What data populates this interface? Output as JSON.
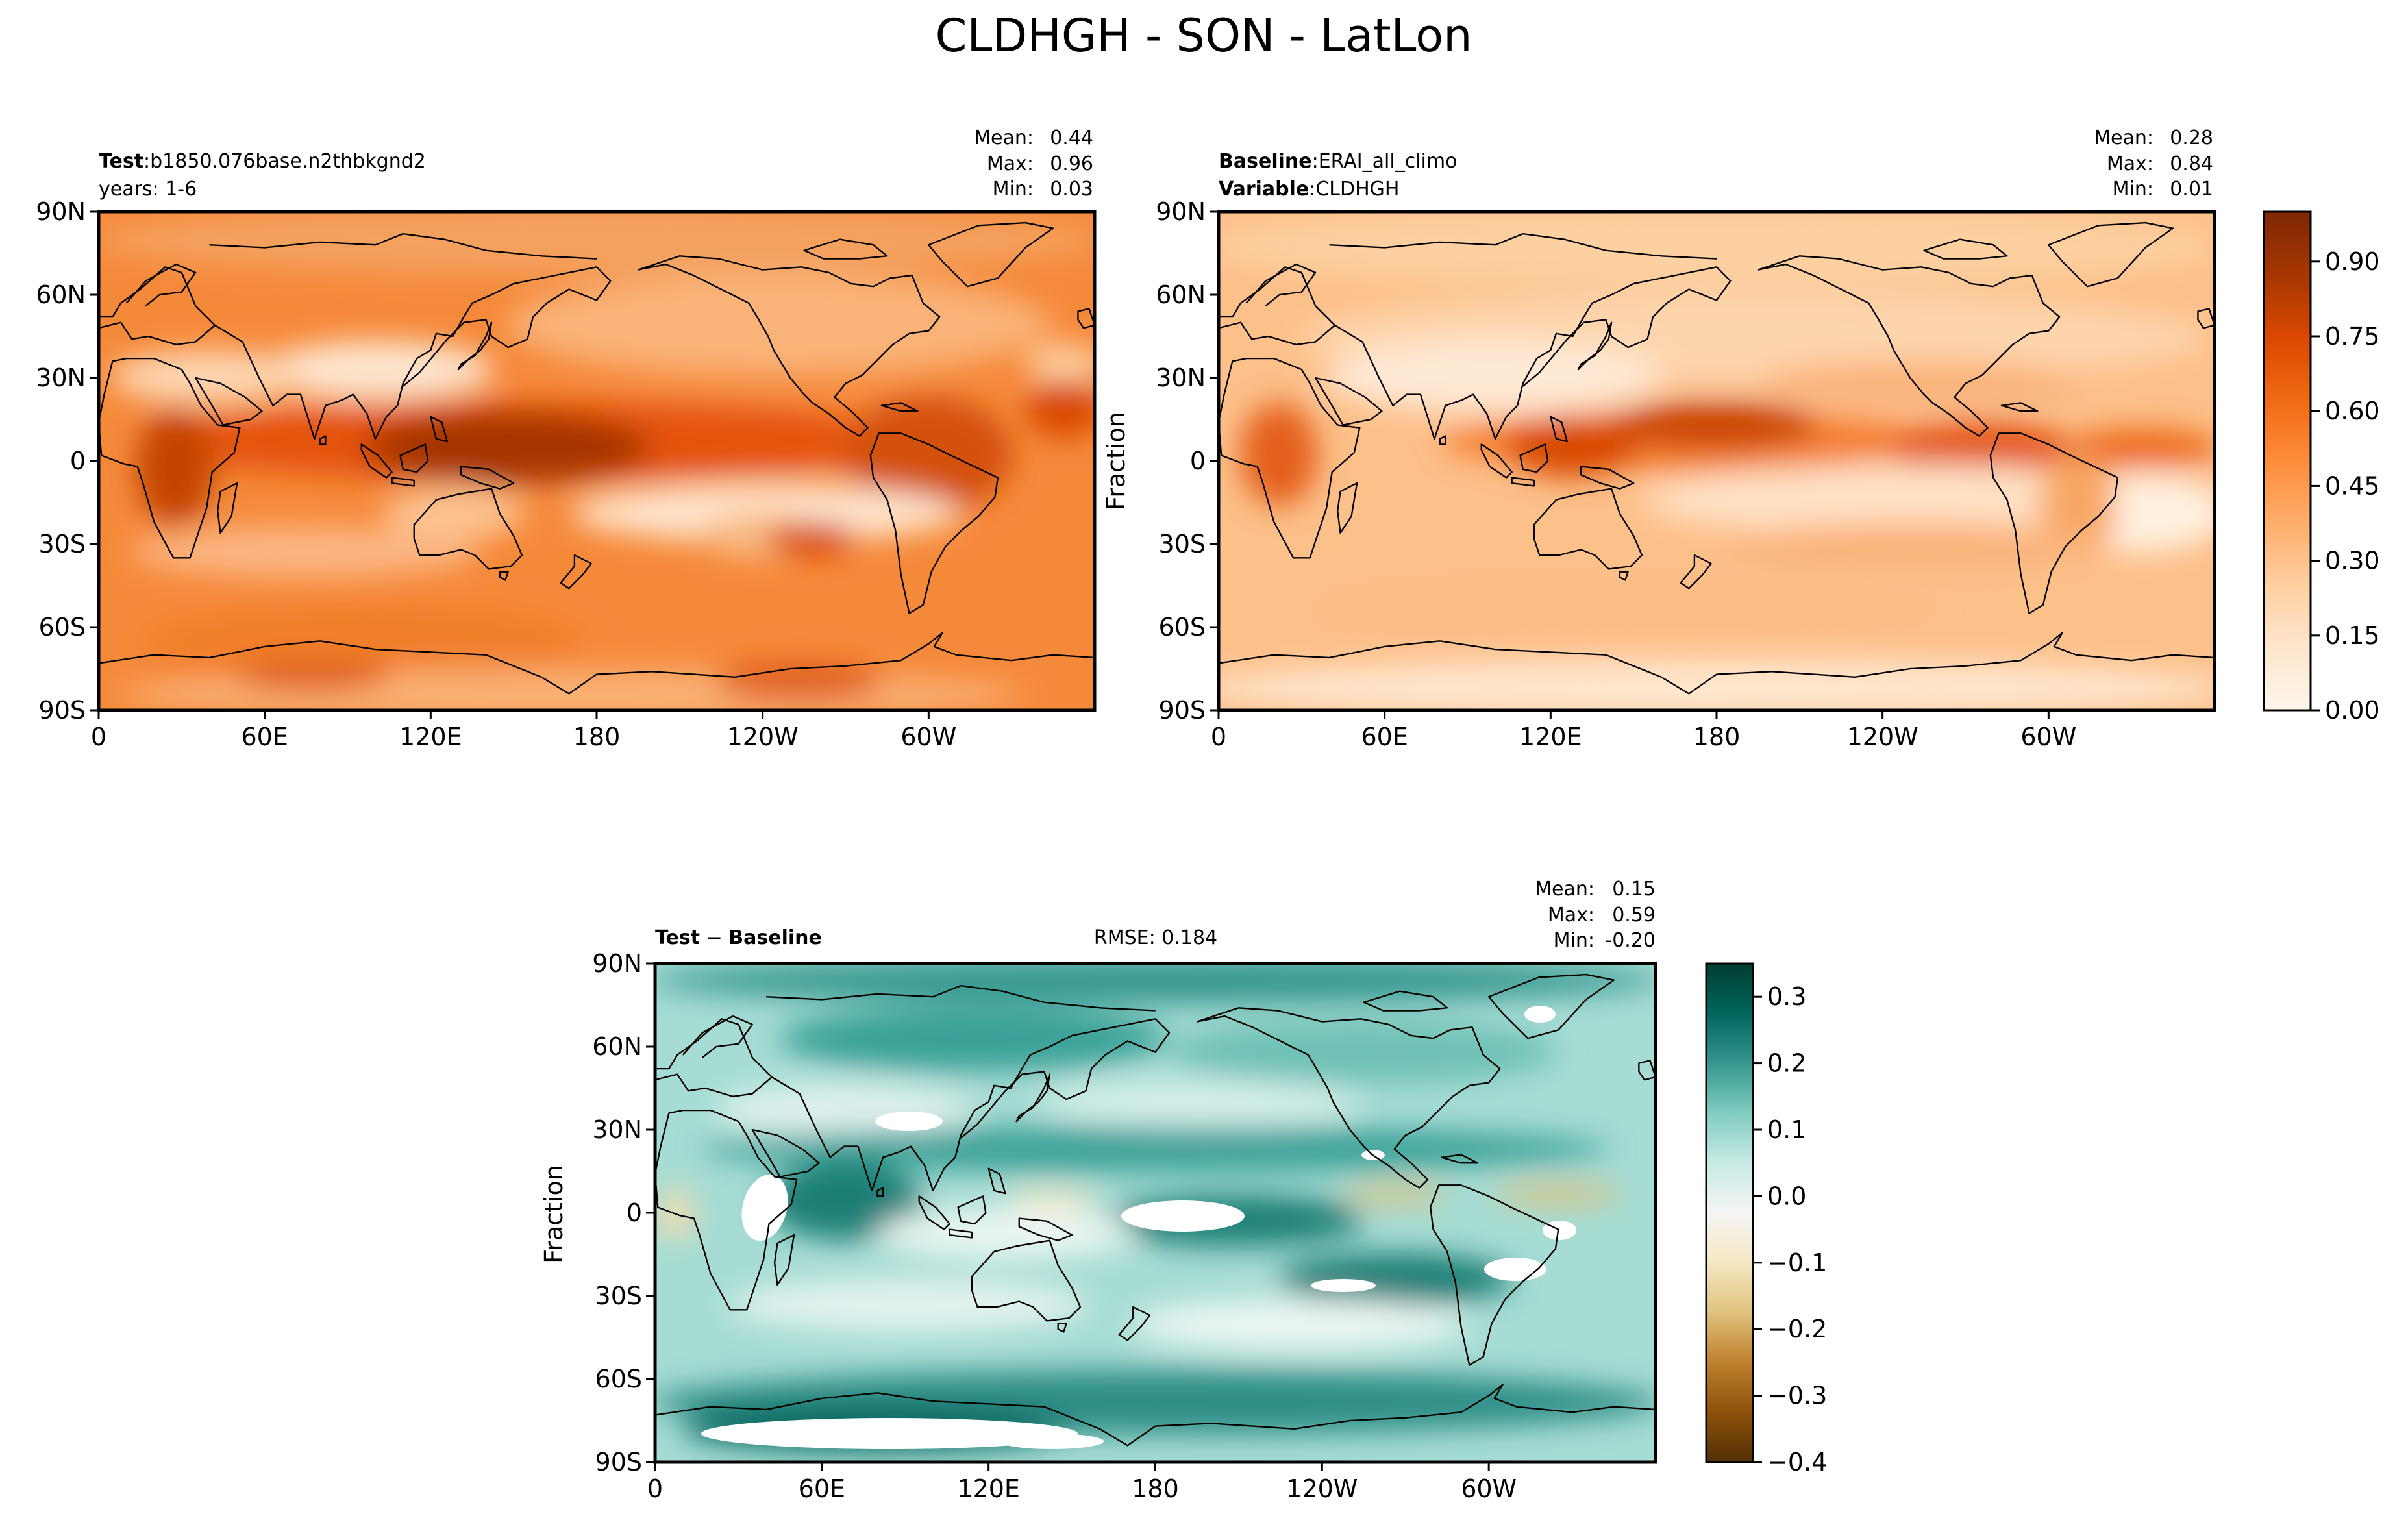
{
  "figure_title": "CLDHGH - SON - LatLon",
  "colors": {
    "orange_stops": [
      "#fff5eb",
      "#fee6ce",
      "#fdd0a2",
      "#fdae6b",
      "#fd8d3c",
      "#f16913",
      "#d94801",
      "#a63603",
      "#7f2704"
    ],
    "brbg_stops": [
      "#543005",
      "#8c510a",
      "#bf812d",
      "#dfc27d",
      "#f6e8c3",
      "#f5f5f5",
      "#c7eae5",
      "#80cdc1",
      "#35978f",
      "#01665e",
      "#003c30"
    ],
    "coast": "#000000"
  },
  "chart_data": [
    {
      "id": "test",
      "type": "heatmap",
      "title_bold": "Test",
      "title_sep": ":",
      "title_text": "b1850.076base.n2thbkgnd2",
      "subtitle": "years: 1-6",
      "stats": {
        "mean_label": "Mean:",
        "mean": "0.44",
        "max_label": "Max:",
        "max": "0.96",
        "min_label": "Min:",
        "min": "0.03"
      },
      "ylabel": "",
      "xticks": [
        "0",
        "60E",
        "120E",
        "180",
        "120W",
        "60W"
      ],
      "xtick_values": [
        0,
        60,
        120,
        180,
        240,
        300
      ],
      "yticks": [
        "90N",
        "60N",
        "30N",
        "0",
        "30S",
        "60S",
        "90S"
      ],
      "ytick_values": [
        90,
        60,
        30,
        0,
        -30,
        -60,
        -90
      ],
      "xlim": [
        0,
        360
      ],
      "ylim": [
        -90,
        90
      ],
      "colormap": "Oranges",
      "value_range": [
        0.0,
        1.0
      ]
    },
    {
      "id": "baseline",
      "type": "heatmap",
      "title_bold": "Baseline",
      "title_sep": ":",
      "title_text": "ERAI_all_climo",
      "subtitle_bold": "Variable",
      "subtitle_text": "CLDHGH",
      "stats": {
        "mean_label": "Mean:",
        "mean": "0.28",
        "max_label": "Max:",
        "max": "0.84",
        "min_label": "Min:",
        "min": "0.01"
      },
      "ylabel": "Fraction",
      "xticks": [
        "0",
        "60E",
        "120E",
        "180",
        "120W",
        "60W"
      ],
      "xtick_values": [
        0,
        60,
        120,
        180,
        240,
        300
      ],
      "yticks": [
        "90N",
        "60N",
        "30N",
        "0",
        "30S",
        "60S",
        "90S"
      ],
      "ytick_values": [
        90,
        60,
        30,
        0,
        -30,
        -60,
        -90
      ],
      "xlim": [
        0,
        360
      ],
      "ylim": [
        -90,
        90
      ],
      "colormap": "Oranges",
      "value_range": [
        0.0,
        1.0
      ],
      "colorbar": {
        "ticks": [
          "0.00",
          "0.15",
          "0.30",
          "0.45",
          "0.60",
          "0.75",
          "0.90"
        ],
        "tick_values": [
          0.0,
          0.15,
          0.3,
          0.45,
          0.6,
          0.75,
          0.9
        ],
        "range": [
          0.0,
          1.0
        ]
      }
    },
    {
      "id": "diff",
      "type": "heatmap",
      "title_bold": "Test",
      "title_sep": " − ",
      "title_bold2": "Baseline",
      "rmse": "RMSE: 0.184",
      "stats": {
        "mean_label": "Mean:",
        "mean": "0.15",
        "max_label": "Max:",
        "max": "0.59",
        "min_label": "Min:",
        "min": "-0.20"
      },
      "ylabel": "Fraction",
      "xticks": [
        "0",
        "60E",
        "120E",
        "180",
        "120W",
        "60W"
      ],
      "xtick_values": [
        0,
        60,
        120,
        180,
        240,
        300
      ],
      "yticks": [
        "90N",
        "60N",
        "30N",
        "0",
        "30S",
        "60S",
        "90S"
      ],
      "ytick_values": [
        90,
        60,
        30,
        0,
        -30,
        -60,
        -90
      ],
      "xlim": [
        0,
        360
      ],
      "ylim": [
        -90,
        90
      ],
      "colormap": "BrBG",
      "value_range": [
        -0.4,
        0.35
      ],
      "colorbar": {
        "ticks": [
          "0.3",
          "0.2",
          "0.1",
          "0.0",
          "−0.1",
          "−0.2",
          "−0.3",
          "−0.4"
        ],
        "tick_values": [
          0.3,
          0.2,
          0.1,
          0.0,
          -0.1,
          -0.2,
          -0.3,
          -0.4
        ],
        "range": [
          -0.4,
          0.35
        ]
      }
    }
  ]
}
